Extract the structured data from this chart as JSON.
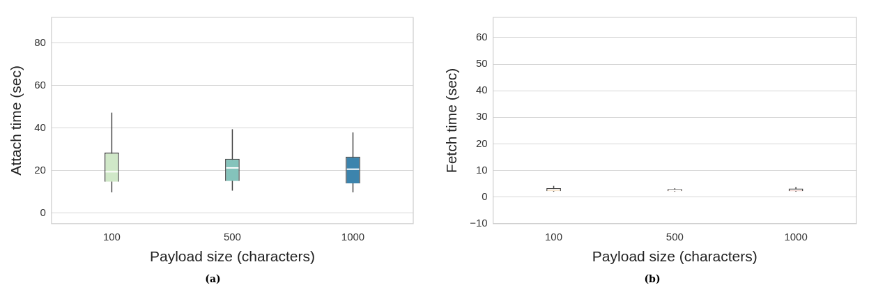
{
  "chart_data": [
    {
      "type": "box",
      "xlabel": "Payload size (characters)",
      "ylabel": "Attach time (sec)",
      "categories": [
        "100",
        "500",
        "1000"
      ],
      "colors": [
        "#d0e8c8",
        "#84c3bb",
        "#3c84ad"
      ],
      "boxes": [
        {
          "low": 9.7,
          "q1": 14.7,
          "median": 19.4,
          "q3": 28.4,
          "high": 47.2
        },
        {
          "low": 10.5,
          "q1": 15,
          "median": 21.2,
          "q3": 25.5,
          "high": 39.4
        },
        {
          "low": 9.7,
          "q1": 13.9,
          "median": 20.6,
          "q3": 26.5,
          "high": 37.9
        }
      ],
      "ylim": [
        -5,
        92
      ],
      "yticks": [
        0,
        20,
        40,
        60,
        80
      ],
      "grid": "y",
      "annotations": [
        "(a)"
      ]
    },
    {
      "type": "box",
      "xlabel": "Payload size (characters)",
      "ylabel": "Fetch time (sec)",
      "categories": [
        "100",
        "500",
        "1000"
      ],
      "colors": [
        "#f3d2a5",
        "#e8946a",
        "#c24432"
      ],
      "boxes": [
        {
          "low": 2,
          "q1": 2.2,
          "median": 2.7,
          "q3": 3.3,
          "high": 4.2
        },
        {
          "low": 2,
          "q1": 2.2,
          "median": 2.5,
          "q3": 3,
          "high": 3.3
        },
        {
          "low": 2,
          "q1": 2.2,
          "median": 2.6,
          "q3": 3.2,
          "high": 3.8
        }
      ],
      "ylim": [
        -10,
        67.6
      ],
      "yticks": [
        {
          "value": -10,
          "label": "−10"
        },
        0,
        10,
        20,
        30,
        40,
        50,
        60
      ],
      "grid": "y",
      "annotations": [
        "(b)"
      ]
    }
  ]
}
